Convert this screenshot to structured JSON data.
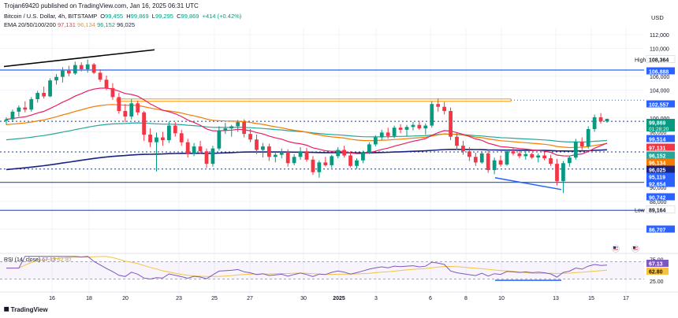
{
  "header": {
    "publisher": "Trojan69420 published on TradingView.com, Jan 16, 2025 06:31 UTC",
    "symbol": "Bitcoin / U.S. Dollar, 4h, BITSTAMP",
    "ohlc": {
      "O": "99,455",
      "H": "99,869",
      "L": "99,295",
      "C": "99,869",
      "change": "+414 (+0.42%)"
    },
    "ema_label": "EMA 20/50/100/200",
    "ema_values": [
      "97,131",
      "96,134",
      "96,152",
      "96,025"
    ]
  },
  "currency": "USD",
  "brand": "TradingView",
  "rsi_legend": {
    "label": "RSI (14, close)",
    "value": "67.13",
    "ma": "62.80"
  },
  "colors": {
    "up": "#089981",
    "down": "#f23645",
    "ema20": "#e91e63",
    "ema50": "#f57c00",
    "ema100": "#26a69a",
    "ema200": "#1a237e",
    "hline": "#2962ff",
    "resistance": "#ff9800",
    "rsi": "#7e57c2",
    "rsi_ma": "#f5c242"
  },
  "chart_data": [
    {
      "type": "candlestick",
      "title": "Bitcoin / U.S. Dollar, 4h, BITSTAMP",
      "x_tick_labels": [
        "16",
        "18",
        "20",
        "23",
        "25",
        "27",
        "30",
        "2025",
        "3",
        "6",
        "8",
        "10",
        "13",
        "15",
        "17"
      ],
      "y_tick_labels": [
        "112,000",
        "110,000",
        "106,000",
        "104,000",
        "100,000",
        "98,000",
        "94,000",
        "90,000",
        "88,000",
        "84,000"
      ],
      "ylim": [
        83000,
        113000
      ],
      "price_labels": [
        {
          "text": "High",
          "value": 108364,
          "label": "108,364"
        },
        {
          "text": "",
          "value": 106888,
          "label": "106,888"
        },
        {
          "text": "",
          "value": 102557,
          "label": "102,557"
        },
        {
          "text": "01:28:20",
          "value": 99869,
          "label": "99,869"
        },
        {
          "text": "",
          "value": 99514,
          "label": "99,514"
        },
        {
          "text": "",
          "value": 97131,
          "label": "97,131"
        },
        {
          "text": "",
          "value": 96152,
          "label": "96,152"
        },
        {
          "text": "",
          "value": 96134,
          "label": "96,134"
        },
        {
          "text": "",
          "value": 96025,
          "label": "96,025"
        },
        {
          "text": "",
          "value": 95119,
          "label": "95,119"
        },
        {
          "text": "",
          "value": 92654,
          "label": "92,654"
        },
        {
          "text": "",
          "value": 90742,
          "label": "90,742"
        },
        {
          "text": "Low",
          "value": 89164,
          "label": "89,164"
        },
        {
          "text": "",
          "value": 86707,
          "label": "86,707"
        }
      ],
      "horizontal_levels": [
        106888,
        102557,
        99514,
        95119,
        92654,
        90742,
        86707
      ],
      "candles": [
        [
          99.6,
          100.1,
          99.0,
          99.8
        ],
        [
          99.8,
          101.2,
          99.4,
          100.9
        ],
        [
          100.9,
          101.8,
          100.2,
          101.5
        ],
        [
          101.5,
          102.4,
          100.8,
          101.2
        ],
        [
          101.2,
          103.0,
          100.9,
          102.7
        ],
        [
          102.7,
          103.9,
          102.2,
          103.6
        ],
        [
          103.6,
          104.5,
          102.8,
          103.1
        ],
        [
          103.1,
          105.7,
          103.0,
          105.4
        ],
        [
          105.4,
          106.3,
          104.8,
          105.9
        ],
        [
          105.9,
          107.3,
          105.1,
          106.8
        ],
        [
          106.8,
          107.5,
          106.0,
          106.4
        ],
        [
          106.4,
          108.1,
          106.2,
          107.6
        ],
        [
          107.6,
          108.0,
          106.7,
          107.0
        ],
        [
          107.0,
          108.4,
          106.5,
          107.7
        ],
        [
          107.7,
          107.9,
          106.3,
          106.5
        ],
        [
          106.5,
          107.0,
          105.2,
          105.5
        ],
        [
          105.5,
          106.1,
          104.0,
          104.3
        ],
        [
          104.3,
          105.0,
          102.6,
          103.0
        ],
        [
          103.0,
          103.6,
          100.6,
          101.0
        ],
        [
          101.0,
          102.0,
          99.4,
          100.2
        ],
        [
          100.2,
          102.7,
          99.8,
          102.1
        ],
        [
          102.1,
          102.5,
          100.4,
          100.8
        ],
        [
          100.8,
          101.0,
          96.7,
          97.6
        ],
        [
          97.6,
          98.5,
          95.8,
          96.5
        ],
        [
          96.5,
          97.9,
          92.3,
          97.2
        ],
        [
          97.2,
          98.0,
          96.0,
          96.8
        ],
        [
          96.8,
          99.5,
          96.4,
          98.9
        ],
        [
          98.9,
          99.4,
          97.3,
          97.8
        ],
        [
          97.8,
          98.3,
          96.0,
          96.5
        ],
        [
          96.5,
          97.0,
          94.3,
          94.9
        ],
        [
          94.9,
          96.4,
          94.5,
          95.9
        ],
        [
          95.9,
          96.7,
          94.9,
          95.2
        ],
        [
          95.2,
          95.6,
          92.8,
          93.4
        ],
        [
          93.4,
          96.0,
          93.0,
          95.6
        ],
        [
          95.6,
          98.8,
          95.3,
          98.2
        ],
        [
          98.2,
          99.3,
          97.7,
          98.5
        ],
        [
          98.5,
          99.0,
          97.3,
          98.8
        ],
        [
          98.8,
          99.7,
          98.0,
          99.4
        ],
        [
          99.4,
          99.8,
          97.2,
          97.7
        ],
        [
          97.7,
          98.4,
          96.5,
          96.9
        ],
        [
          96.9,
          97.6,
          94.8,
          95.4
        ],
        [
          95.4,
          96.4,
          94.3,
          95.9
        ],
        [
          95.9,
          96.3,
          93.8,
          94.4
        ],
        [
          94.4,
          95.1,
          93.6,
          94.7
        ],
        [
          94.7,
          95.6,
          94.2,
          95.1
        ],
        [
          95.1,
          95.5,
          93.0,
          93.5
        ],
        [
          93.5,
          94.8,
          93.2,
          94.4
        ],
        [
          94.4,
          95.8,
          94.0,
          95.2
        ],
        [
          95.2,
          95.7,
          93.7,
          94.0
        ],
        [
          94.0,
          94.5,
          91.8,
          92.2
        ],
        [
          92.2,
          93.9,
          91.4,
          93.6
        ],
        [
          93.6,
          94.4,
          93.0,
          93.2
        ],
        [
          93.2,
          94.7,
          92.8,
          94.5
        ],
        [
          94.5,
          95.8,
          94.2,
          95.4
        ],
        [
          95.4,
          96.0,
          94.3,
          94.6
        ],
        [
          94.6,
          95.2,
          92.9,
          93.1
        ],
        [
          93.1,
          94.2,
          92.7,
          93.9
        ],
        [
          93.9,
          95.3,
          93.5,
          95.0
        ],
        [
          95.0,
          96.5,
          94.8,
          96.2
        ],
        [
          96.2,
          97.5,
          95.9,
          97.2
        ],
        [
          97.2,
          98.3,
          96.8,
          97.9
        ],
        [
          97.9,
          98.6,
          97.0,
          97.4
        ],
        [
          97.4,
          98.9,
          97.1,
          98.6
        ],
        [
          98.6,
          99.1,
          97.8,
          98.3
        ],
        [
          98.3,
          99.0,
          97.4,
          98.7
        ],
        [
          98.7,
          99.4,
          98.2,
          99.0
        ],
        [
          99.0,
          99.6,
          98.3,
          98.5
        ],
        [
          98.5,
          99.2,
          97.6,
          98.9
        ],
        [
          98.9,
          102.4,
          98.6,
          102.0
        ],
        [
          102.0,
          102.8,
          100.9,
          101.6
        ],
        [
          101.6,
          102.3,
          100.5,
          101.0
        ],
        [
          101.0,
          101.5,
          96.8,
          97.3
        ],
        [
          97.3,
          97.9,
          95.4,
          96.0
        ],
        [
          96.0,
          96.7,
          94.7,
          95.2
        ],
        [
          95.2,
          95.8,
          93.8,
          94.4
        ],
        [
          94.4,
          95.0,
          93.1,
          93.6
        ],
        [
          93.6,
          95.2,
          93.4,
          94.9
        ],
        [
          94.9,
          95.4,
          92.1,
          92.5
        ],
        [
          92.5,
          94.3,
          91.9,
          93.9
        ],
        [
          93.9,
          94.6,
          93.0,
          93.3
        ],
        [
          93.3,
          95.5,
          93.1,
          95.2
        ],
        [
          95.2,
          95.7,
          94.6,
          94.9
        ],
        [
          94.9,
          95.3,
          94.2,
          94.5
        ],
        [
          94.5,
          95.2,
          94.0,
          94.8
        ],
        [
          94.8,
          95.0,
          94.1,
          94.3
        ],
        [
          94.3,
          94.9,
          93.6,
          94.6
        ],
        [
          94.6,
          95.1,
          93.9,
          94.2
        ],
        [
          94.2,
          94.7,
          93.1,
          93.4
        ],
        [
          93.4,
          94.1,
          90.3,
          90.9
        ],
        [
          90.9,
          93.8,
          89.2,
          93.5
        ],
        [
          93.5,
          94.6,
          93.0,
          94.3
        ],
        [
          94.3,
          97.0,
          94.0,
          96.6
        ],
        [
          96.6,
          97.2,
          95.4,
          95.9
        ],
        [
          95.9,
          98.8,
          95.6,
          98.4
        ],
        [
          98.4,
          100.5,
          98.0,
          100.1
        ],
        [
          100.1,
          100.7,
          99.2,
          99.5
        ],
        [
          99.5,
          99.9,
          99.3,
          99.87
        ]
      ]
    },
    {
      "type": "line",
      "title": "RSI (14, close)",
      "y_tick_labels": [
        "75.00",
        "25.00"
      ],
      "ylim": [
        20,
        85
      ],
      "value_labels": [
        "67.13",
        "62.80"
      ],
      "levels": [
        70,
        30
      ]
    }
  ]
}
